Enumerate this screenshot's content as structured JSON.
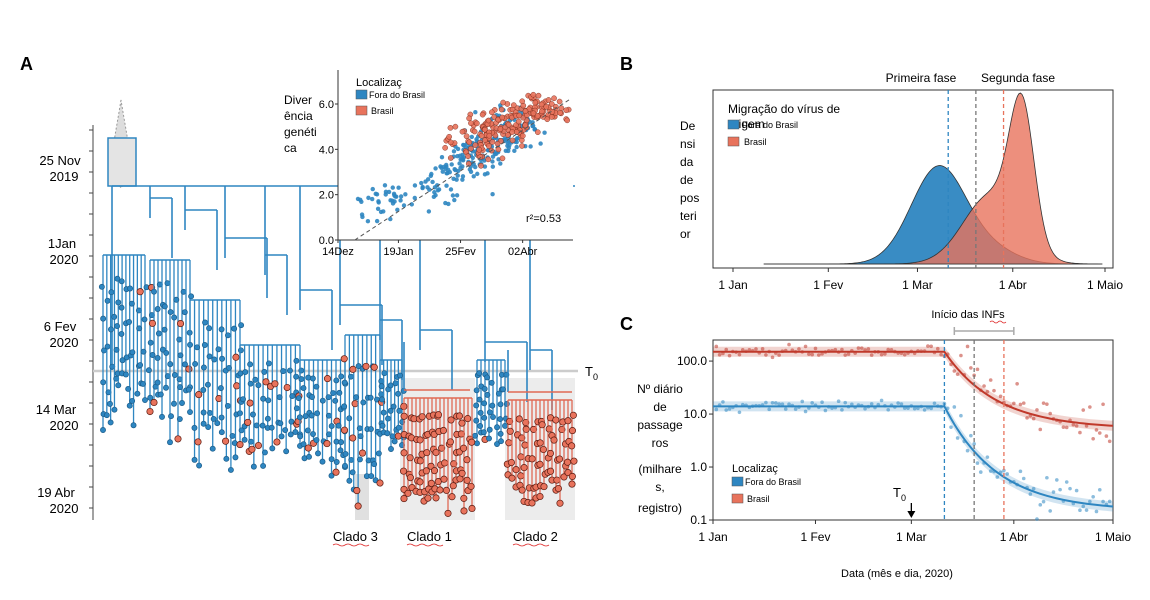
{
  "panels": {
    "a": {
      "letter": "A",
      "time_labels": [
        {
          "l1": "25 Nov",
          "l2": "2019"
        },
        {
          "l1": "1Jan",
          "l2": "2020"
        },
        {
          "l1": "6 Fev",
          "l2": "2020"
        },
        {
          "l1": "14 Mar",
          "l2": "2020"
        },
        {
          "l1": "19 Abr",
          "l2": "2020"
        }
      ],
      "t0_label": "T",
      "t0_sub": "0",
      "clades": [
        {
          "label": "Clado  3"
        },
        {
          "label": "Clado  1"
        },
        {
          "label": "Clado  2"
        }
      ]
    },
    "b": {
      "letter": "B",
      "phase1": "Primeira fase",
      "phase2": "Segunda fase",
      "legend_title_l1": "Migração do vírus de",
      "legend_title_l2": "origem",
      "legend_out": "Fora do Brasil",
      "legend_br": "Brasil",
      "ylabel_lines": [
        "De",
        "nsi",
        "da",
        "de",
        "pos",
        "teri",
        "or"
      ]
    },
    "c": {
      "letter": "C",
      "inf_label": "Início das INFs",
      "ylabel_lines": [
        "Nº diário",
        "de",
        "passage",
        "ros",
        "(milhare",
        "s,",
        "registro)"
      ],
      "xlabel": "Data (mês e dia, 2020)",
      "legend_title": "Localizaç",
      "legend_out": "Fora do Brasil",
      "legend_br": "Brasil",
      "t0_label": "T",
      "t0_sub": "0"
    },
    "inset": {
      "ylabel_lines": [
        "Diver",
        "ência",
        "genéti",
        "ca"
      ],
      "legend_title": "Localizaç",
      "legend_out": "Fora do Brasil",
      "legend_br": "Brasil",
      "r2": "r²=0.53"
    }
  },
  "chart_data": [
    {
      "id": "inset",
      "type": "scatter",
      "yticks": [
        "0.0",
        "2.0",
        "4.0",
        "6.0"
      ],
      "ylim": [
        0,
        7.5
      ],
      "xticks": [
        "14Dez",
        "19Jan",
        "25Fev",
        "02Abr"
      ],
      "xtick_days": [
        0,
        36,
        73,
        110
      ],
      "xlim": [
        0,
        140
      ],
      "series": [
        {
          "name": "Fora do Brasil",
          "color": "#2e86c1",
          "clusters": [
            [
              30,
              1.9,
              28,
              0.5
            ],
            [
              55,
              2.2,
              25,
              0.8
            ],
            [
              70,
              3.1,
              40,
              0.9
            ],
            [
              82,
              3.8,
              60,
              0.9
            ],
            [
              95,
              4.6,
              55,
              0.9
            ],
            [
              110,
              5.0,
              35,
              0.8
            ],
            [
              20,
              1.4,
              10,
              0.6
            ]
          ]
        },
        {
          "name": "Brasil",
          "color": "#e8735c",
          "clusters": [
            [
              90,
              4.7,
              70,
              0.8
            ],
            [
              105,
              5.2,
              60,
              0.7
            ],
            [
              120,
              5.7,
              45,
              0.6
            ],
            [
              130,
              5.6,
              18,
              0.4
            ],
            [
              78,
              4.3,
              25,
              0.8
            ]
          ]
        }
      ],
      "trend_line": {
        "x": [
          10,
          138
        ],
        "y": [
          -0.2,
          6.2
        ]
      }
    },
    {
      "id": "b",
      "type": "area",
      "xticks": [
        "1 Jan",
        "1 Fev",
        "1 Mar",
        "1 Abr",
        "1 Maio"
      ],
      "xtick_days": [
        0,
        31,
        60,
        91,
        121
      ],
      "xlim": [
        0,
        121
      ],
      "series": [
        {
          "name": "Fora do Brasil",
          "color": "#2e86c1",
          "components": [
            [
              67,
              9,
              1.0
            ],
            [
              85,
              8,
              0.12
            ]
          ]
        },
        {
          "name": "Brasil",
          "color": "#e8735c",
          "components": [
            [
              94,
              4,
              1.05
            ],
            [
              84,
              9,
              0.55
            ]
          ]
        }
      ],
      "vlines": [
        {
          "day": 70,
          "color": "#2e86c1"
        },
        {
          "day": 79,
          "color": "#777777"
        },
        {
          "day": 88,
          "color": "#e8735c"
        }
      ]
    },
    {
      "id": "c",
      "type": "line",
      "log_scale": true,
      "yticks": [
        "100.0",
        "10.0",
        "1.0",
        "0.1"
      ],
      "ytick_values": [
        100,
        10,
        1,
        0.1
      ],
      "ylim": [
        0.1,
        250
      ],
      "xticks": [
        "1 Jan",
        "1 Fev",
        "1 Mar",
        "1 Abr",
        "1 Maio"
      ],
      "xtick_days": [
        0,
        31,
        60,
        91,
        121
      ],
      "xlim": [
        0,
        121
      ],
      "series": [
        {
          "name": "Brasil",
          "color": "#c0392b",
          "plateau": 150,
          "start_day": 70,
          "end_value": 6.0
        },
        {
          "name": "Fora do Brasil",
          "color": "#2e86c1",
          "plateau": 14,
          "start_day": 70,
          "end_value": 0.18
        }
      ],
      "inf_range_days": [
        73,
        91
      ],
      "vlines": [
        {
          "day": 70,
          "color": "#2e86c1"
        },
        {
          "day": 79,
          "color": "#777777"
        },
        {
          "day": 88,
          "color": "#e8735c"
        }
      ],
      "t0_day": 60
    }
  ]
}
